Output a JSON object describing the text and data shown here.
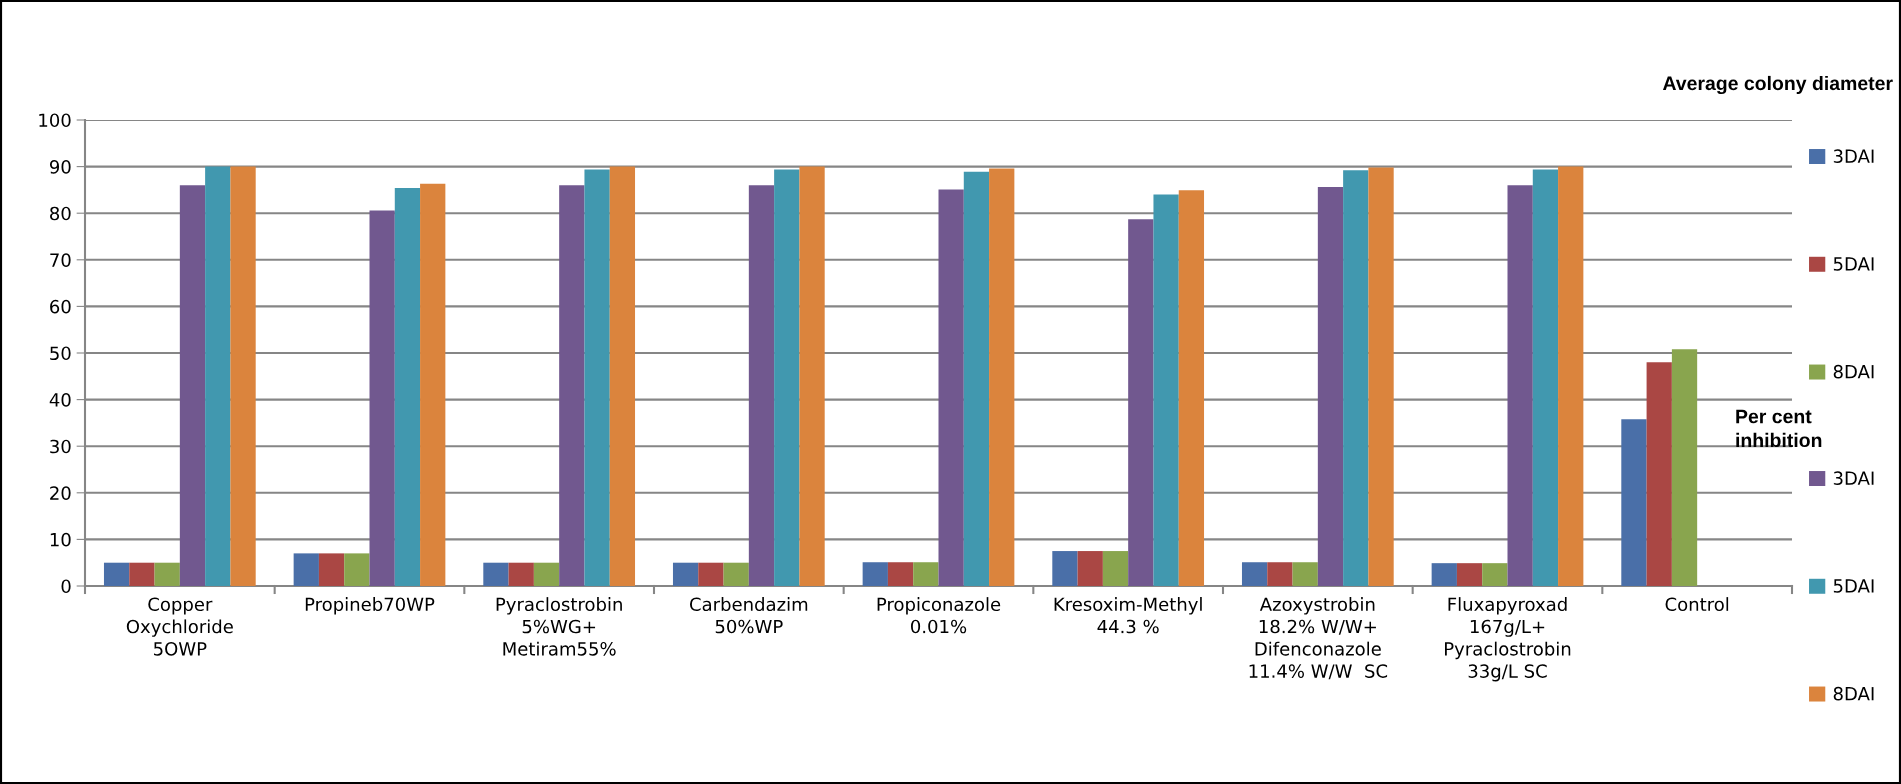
{
  "chart_data": {
    "type": "bar",
    "categories": [
      "Copper\nOxychloride\n5OWP",
      "Propineb70WP",
      "Pyraclostrobin\n5%WG+\nMetiram55%",
      "Carbendazim\n50%WP",
      "Propiconazole\n0.01%",
      "Kresoxim-Methyl\n44.3 %",
      "Azoxystrobin\n18.2% W/W+\nDifenconazole\n11.4% W/W  SC",
      "Fluxapyroxad\n167g/L+\nPyraclostrobin\n33g/L SC",
      "Control"
    ],
    "series": [
      {
        "name": "3DAI",
        "color": "#4a6fa8",
        "values": [
          5,
          7,
          5,
          5,
          5.1,
          7.5,
          5.1,
          4.9,
          35.8
        ]
      },
      {
        "name": "5DAI",
        "color": "#aa4744",
        "values": [
          5,
          7,
          5,
          5,
          5.1,
          7.5,
          5.1,
          4.9,
          48
        ]
      },
      {
        "name": "8DAI",
        "color": "#89a54e",
        "values": [
          5,
          7,
          5,
          5,
          5.1,
          7.5,
          5.1,
          4.9,
          50.8
        ]
      },
      {
        "name": "3DAI",
        "color": "#71588f",
        "values": [
          86,
          80.6,
          86,
          86,
          85.1,
          78.7,
          85.6,
          86,
          null
        ]
      },
      {
        "name": "5DAI",
        "color": "#4198af",
        "values": [
          90,
          85.4,
          89.4,
          89.4,
          88.9,
          84,
          89.2,
          89.4,
          null
        ]
      },
      {
        "name": "8DAI",
        "color": "#db843d",
        "values": [
          90,
          86.3,
          90,
          90,
          89.6,
          84.9,
          89.8,
          90,
          null
        ]
      }
    ],
    "ylim": [
      0,
      100
    ],
    "yticks": [
      0,
      10,
      20,
      30,
      40,
      50,
      60,
      70,
      80,
      90,
      100
    ],
    "grid": "y",
    "legend": "right",
    "annotations": [
      "Average colony diameter",
      "Per cent\ninhibition"
    ]
  }
}
